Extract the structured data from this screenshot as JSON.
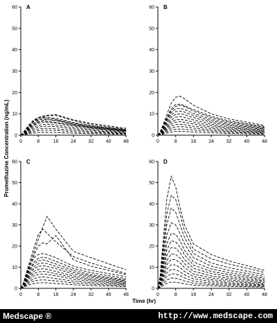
{
  "figure": {
    "ylabel": "Promethazine Concentration (ng/mL)",
    "xlabel": "Time (hr)"
  },
  "footer": {
    "brand": "Medscape ®",
    "url": "http://www.medscape.com"
  },
  "chart_data": [
    {
      "type": "line",
      "panel": "A",
      "x_ticks": [
        0,
        8,
        16,
        24,
        32,
        40,
        48
      ],
      "y_ticks": [
        0,
        10,
        20,
        30,
        40,
        50,
        60
      ],
      "xlim": [
        0,
        48
      ],
      "ylim": [
        0,
        60
      ],
      "grid": false,
      "line_style": "dashed",
      "x": [
        0,
        1,
        2,
        4,
        6,
        8,
        10,
        12,
        16,
        24,
        32,
        48
      ],
      "series": [
        {
          "values": [
            0,
            0.8,
            2.0,
            4.5,
            6.8,
            8.2,
            8.9,
            9.3,
            9.6,
            7.2,
            5.5,
            3.2
          ]
        },
        {
          "values": [
            0,
            0.6,
            1.8,
            4.2,
            6.5,
            7.8,
            8.6,
            9.0,
            9.2,
            6.8,
            5.0,
            2.8
          ]
        },
        {
          "values": [
            0,
            1.0,
            2.6,
            5.2,
            7.2,
            8.0,
            8.3,
            8.0,
            7.4,
            5.6,
            4.2,
            2.4
          ]
        },
        {
          "values": [
            0,
            0.5,
            1.5,
            3.5,
            5.5,
            7.0,
            7.8,
            8.2,
            7.9,
            5.9,
            4.4,
            2.5
          ]
        },
        {
          "values": [
            0,
            0.8,
            2.2,
            4.6,
            6.4,
            7.2,
            7.5,
            7.3,
            6.8,
            5.0,
            3.7,
            2.1
          ]
        },
        {
          "values": [
            0,
            0.4,
            1.2,
            3.0,
            4.8,
            6.0,
            6.8,
            7.2,
            7.0,
            5.2,
            3.9,
            2.2
          ]
        },
        {
          "values": [
            0,
            0.7,
            1.9,
            3.9,
            5.4,
            6.3,
            6.6,
            6.4,
            6.0,
            4.6,
            3.4,
            1.9
          ]
        },
        {
          "values": [
            0,
            0.5,
            1.4,
            3.2,
            4.6,
            5.5,
            5.9,
            6.0,
            5.7,
            4.3,
            3.2,
            1.8
          ]
        },
        {
          "values": [
            0,
            0.4,
            1.1,
            2.6,
            3.8,
            4.6,
            5.0,
            5.1,
            4.8,
            3.6,
            2.7,
            1.5
          ]
        },
        {
          "values": [
            0,
            0.3,
            0.9,
            2.1,
            3.1,
            3.8,
            4.1,
            4.2,
            4.0,
            3.0,
            2.2,
            1.2
          ]
        },
        {
          "values": [
            0,
            0.3,
            0.7,
            1.6,
            2.4,
            2.9,
            3.1,
            3.2,
            3.0,
            2.3,
            1.7,
            0.9
          ]
        },
        {
          "values": [
            0,
            0.2,
            0.5,
            1.2,
            1.7,
            2.1,
            2.3,
            2.3,
            2.2,
            1.6,
            1.2,
            0.7
          ]
        },
        {
          "values": [
            0,
            0.1,
            0.3,
            0.7,
            1.0,
            1.2,
            1.3,
            1.3,
            1.2,
            0.9,
            0.7,
            0.4
          ]
        }
      ]
    },
    {
      "type": "line",
      "panel": "B",
      "x_ticks": [
        0,
        8,
        16,
        24,
        32,
        40,
        48
      ],
      "y_ticks": [
        0,
        10,
        20,
        30,
        40,
        50,
        60
      ],
      "xlim": [
        0,
        48
      ],
      "ylim": [
        0,
        60
      ],
      "grid": false,
      "line_style": "dashed",
      "x": [
        0,
        1,
        2,
        4,
        6,
        8,
        10,
        12,
        16,
        24,
        32,
        48
      ],
      "series": [
        {
          "values": [
            0,
            1.5,
            4.0,
            9.5,
            15.0,
            17.8,
            18.2,
            17.0,
            14.0,
            10.0,
            7.6,
            4.6
          ]
        },
        {
          "values": [
            0,
            1.3,
            3.5,
            8.2,
            12.3,
            14.4,
            14.5,
            13.8,
            12.0,
            8.8,
            6.7,
            4.1
          ]
        },
        {
          "values": [
            0,
            1.2,
            3.2,
            7.5,
            11.5,
            13.5,
            14.0,
            13.4,
            11.3,
            8.2,
            6.2,
            3.7
          ]
        },
        {
          "values": [
            0,
            1.1,
            3.0,
            7.0,
            10.5,
            12.3,
            12.6,
            12.0,
            10.2,
            7.4,
            5.6,
            3.3
          ]
        },
        {
          "values": [
            0,
            1.0,
            2.6,
            6.2,
            9.4,
            11.0,
            11.3,
            10.8,
            9.2,
            6.7,
            5.0,
            3.0
          ]
        },
        {
          "values": [
            0,
            0.9,
            2.3,
            5.4,
            8.3,
            9.7,
            10.0,
            9.6,
            8.2,
            6.0,
            4.5,
            2.7
          ]
        },
        {
          "values": [
            0,
            0.8,
            2.0,
            4.7,
            7.1,
            8.4,
            8.7,
            8.3,
            7.1,
            5.2,
            3.9,
            2.3
          ]
        },
        {
          "values": [
            0,
            0.7,
            1.7,
            4.0,
            6.1,
            7.2,
            7.4,
            7.1,
            6.1,
            4.5,
            3.4,
            2.0
          ]
        },
        {
          "values": [
            0,
            0.6,
            1.5,
            3.4,
            5.2,
            6.1,
            6.3,
            6.0,
            5.2,
            3.8,
            2.9,
            1.7
          ]
        },
        {
          "values": [
            0,
            0.5,
            1.2,
            2.8,
            4.2,
            5.0,
            5.1,
            4.9,
            4.2,
            3.1,
            2.3,
            1.4
          ]
        },
        {
          "values": [
            0,
            0.4,
            1.0,
            2.2,
            3.3,
            3.9,
            4.0,
            3.9,
            3.3,
            2.4,
            1.8,
            1.1
          ]
        },
        {
          "values": [
            0,
            0.3,
            0.7,
            1.6,
            2.4,
            2.8,
            2.9,
            2.8,
            2.4,
            1.8,
            1.3,
            0.8
          ]
        },
        {
          "values": [
            0,
            0.2,
            0.4,
            1.0,
            1.5,
            1.8,
            1.8,
            1.7,
            1.5,
            1.1,
            0.8,
            0.5
          ]
        }
      ]
    },
    {
      "type": "line",
      "panel": "C",
      "x_ticks": [
        0,
        8,
        16,
        24,
        32,
        40,
        48
      ],
      "y_ticks": [
        0,
        10,
        20,
        30,
        40,
        50,
        60
      ],
      "xlim": [
        0,
        48
      ],
      "ylim": [
        0,
        60
      ],
      "grid": false,
      "line_style": "dashed",
      "x": [
        0,
        1,
        2,
        4,
        6,
        8,
        10,
        12,
        16,
        24,
        32,
        48
      ],
      "series": [
        {
          "values": [
            0,
            2.0,
            5.0,
            11.0,
            17.0,
            23.0,
            29.0,
            34.0,
            28.0,
            17.5,
            14.5,
            8.8
          ]
        },
        {
          "values": [
            0,
            2.0,
            5.5,
            12.5,
            19.0,
            25.5,
            28.0,
            26.0,
            22.0,
            15.0,
            12.0,
            7.0
          ]
        },
        {
          "values": [
            0,
            1.8,
            4.5,
            10.0,
            15.5,
            20.0,
            21.5,
            21.0,
            25.0,
            13.5,
            10.5,
            6.5
          ]
        },
        {
          "values": [
            0,
            1.8,
            4.8,
            10.5,
            14.5,
            16.0,
            16.5,
            16.0,
            14.5,
            10.5,
            8.5,
            5.5
          ]
        },
        {
          "values": [
            0,
            1.6,
            4.2,
            9.0,
            12.5,
            14.2,
            14.8,
            14.4,
            12.8,
            9.4,
            7.4,
            4.6
          ]
        },
        {
          "values": [
            0,
            1.5,
            4.0,
            8.5,
            11.5,
            13.0,
            13.5,
            13.0,
            11.5,
            8.5,
            6.5,
            4.0
          ]
        },
        {
          "values": [
            0,
            1.3,
            3.5,
            7.5,
            10.2,
            11.6,
            12.0,
            11.7,
            10.4,
            7.6,
            5.9,
            3.6
          ]
        },
        {
          "values": [
            0,
            1.2,
            3.2,
            6.8,
            9.2,
            10.4,
            10.7,
            10.4,
            9.3,
            6.8,
            5.3,
            3.2
          ]
        },
        {
          "values": [
            0,
            1.0,
            2.8,
            6.0,
            8.0,
            9.0,
            9.3,
            9.0,
            8.0,
            5.9,
            4.6,
            2.8
          ]
        },
        {
          "values": [
            0,
            0.9,
            2.4,
            5.2,
            7.0,
            7.8,
            8.0,
            7.8,
            6.9,
            5.1,
            4.0,
            2.4
          ]
        },
        {
          "values": [
            0,
            0.8,
            2.0,
            4.3,
            5.9,
            6.6,
            6.8,
            6.6,
            5.9,
            4.3,
            3.4,
            2.0
          ]
        },
        {
          "values": [
            0,
            0.6,
            1.6,
            3.4,
            4.6,
            5.2,
            5.4,
            5.2,
            4.6,
            3.4,
            2.7,
            1.6
          ]
        },
        {
          "values": [
            0,
            0.5,
            1.2,
            2.6,
            3.5,
            3.9,
            4.0,
            3.9,
            3.5,
            2.6,
            2.0,
            1.2
          ]
        },
        {
          "values": [
            0,
            0.3,
            0.8,
            1.7,
            2.3,
            2.6,
            2.7,
            2.6,
            2.3,
            1.7,
            1.3,
            0.8
          ]
        }
      ]
    },
    {
      "type": "line",
      "panel": "D",
      "x_ticks": [
        0,
        8,
        16,
        24,
        32,
        40,
        48
      ],
      "y_ticks": [
        0,
        10,
        20,
        30,
        40,
        50,
        60
      ],
      "xlim": [
        0,
        48
      ],
      "ylim": [
        0,
        60
      ],
      "grid": false,
      "line_style": "dashed",
      "x": [
        0,
        1,
        2,
        4,
        6,
        8,
        10,
        12,
        16,
        24,
        32,
        48
      ],
      "series": [
        {
          "values": [
            0,
            6.0,
            18.0,
            42.0,
            53.0,
            48.0,
            38.0,
            30.0,
            21.0,
            16.0,
            13.0,
            8.5
          ]
        },
        {
          "values": [
            0,
            5.0,
            15.0,
            35.0,
            44.0,
            42.0,
            35.0,
            27.0,
            18.5,
            14.0,
            11.5,
            7.5
          ]
        },
        {
          "values": [
            0,
            4.5,
            13.0,
            30.0,
            38.0,
            36.0,
            30.0,
            24.0,
            16.5,
            12.0,
            9.8,
            6.5
          ]
        },
        {
          "values": [
            0,
            4.0,
            11.0,
            25.0,
            31.0,
            30.0,
            26.0,
            21.0,
            14.5,
            10.5,
            8.5,
            5.6
          ]
        },
        {
          "values": [
            0,
            3.5,
            9.5,
            21.0,
            26.0,
            25.5,
            22.5,
            18.0,
            12.5,
            9.2,
            7.4,
            4.8
          ]
        },
        {
          "values": [
            0,
            3.0,
            8.2,
            18.0,
            22.5,
            22.0,
            19.5,
            15.8,
            11.0,
            8.0,
            6.5,
            4.2
          ]
        },
        {
          "values": [
            0,
            2.6,
            7.0,
            15.5,
            19.3,
            19.0,
            16.8,
            13.6,
            9.5,
            7.0,
            5.6,
            3.6
          ]
        },
        {
          "values": [
            0,
            2.2,
            6.0,
            13.0,
            16.3,
            16.0,
            14.2,
            11.6,
            8.1,
            5.9,
            4.8,
            3.1
          ]
        },
        {
          "values": [
            0,
            1.9,
            5.0,
            11.0,
            13.7,
            13.5,
            12.0,
            9.8,
            6.8,
            5.0,
            4.0,
            2.6
          ]
        },
        {
          "values": [
            0,
            1.6,
            4.2,
            9.0,
            11.2,
            11.0,
            9.8,
            8.0,
            5.6,
            4.1,
            3.3,
            2.1
          ]
        },
        {
          "values": [
            0,
            1.3,
            3.4,
            7.2,
            9.0,
            8.8,
            7.8,
            6.4,
            4.5,
            3.3,
            2.6,
            1.7
          ]
        },
        {
          "values": [
            0,
            1.0,
            2.6,
            5.5,
            6.9,
            6.8,
            6.0,
            4.9,
            3.4,
            2.5,
            2.0,
            1.3
          ]
        },
        {
          "values": [
            0,
            0.7,
            1.8,
            3.9,
            4.9,
            4.8,
            4.2,
            3.5,
            2.4,
            1.8,
            1.4,
            0.9
          ]
        },
        {
          "values": [
            0,
            0.4,
            1.1,
            2.4,
            3.0,
            2.9,
            2.6,
            2.1,
            1.5,
            1.1,
            0.9,
            0.6
          ]
        }
      ]
    }
  ]
}
